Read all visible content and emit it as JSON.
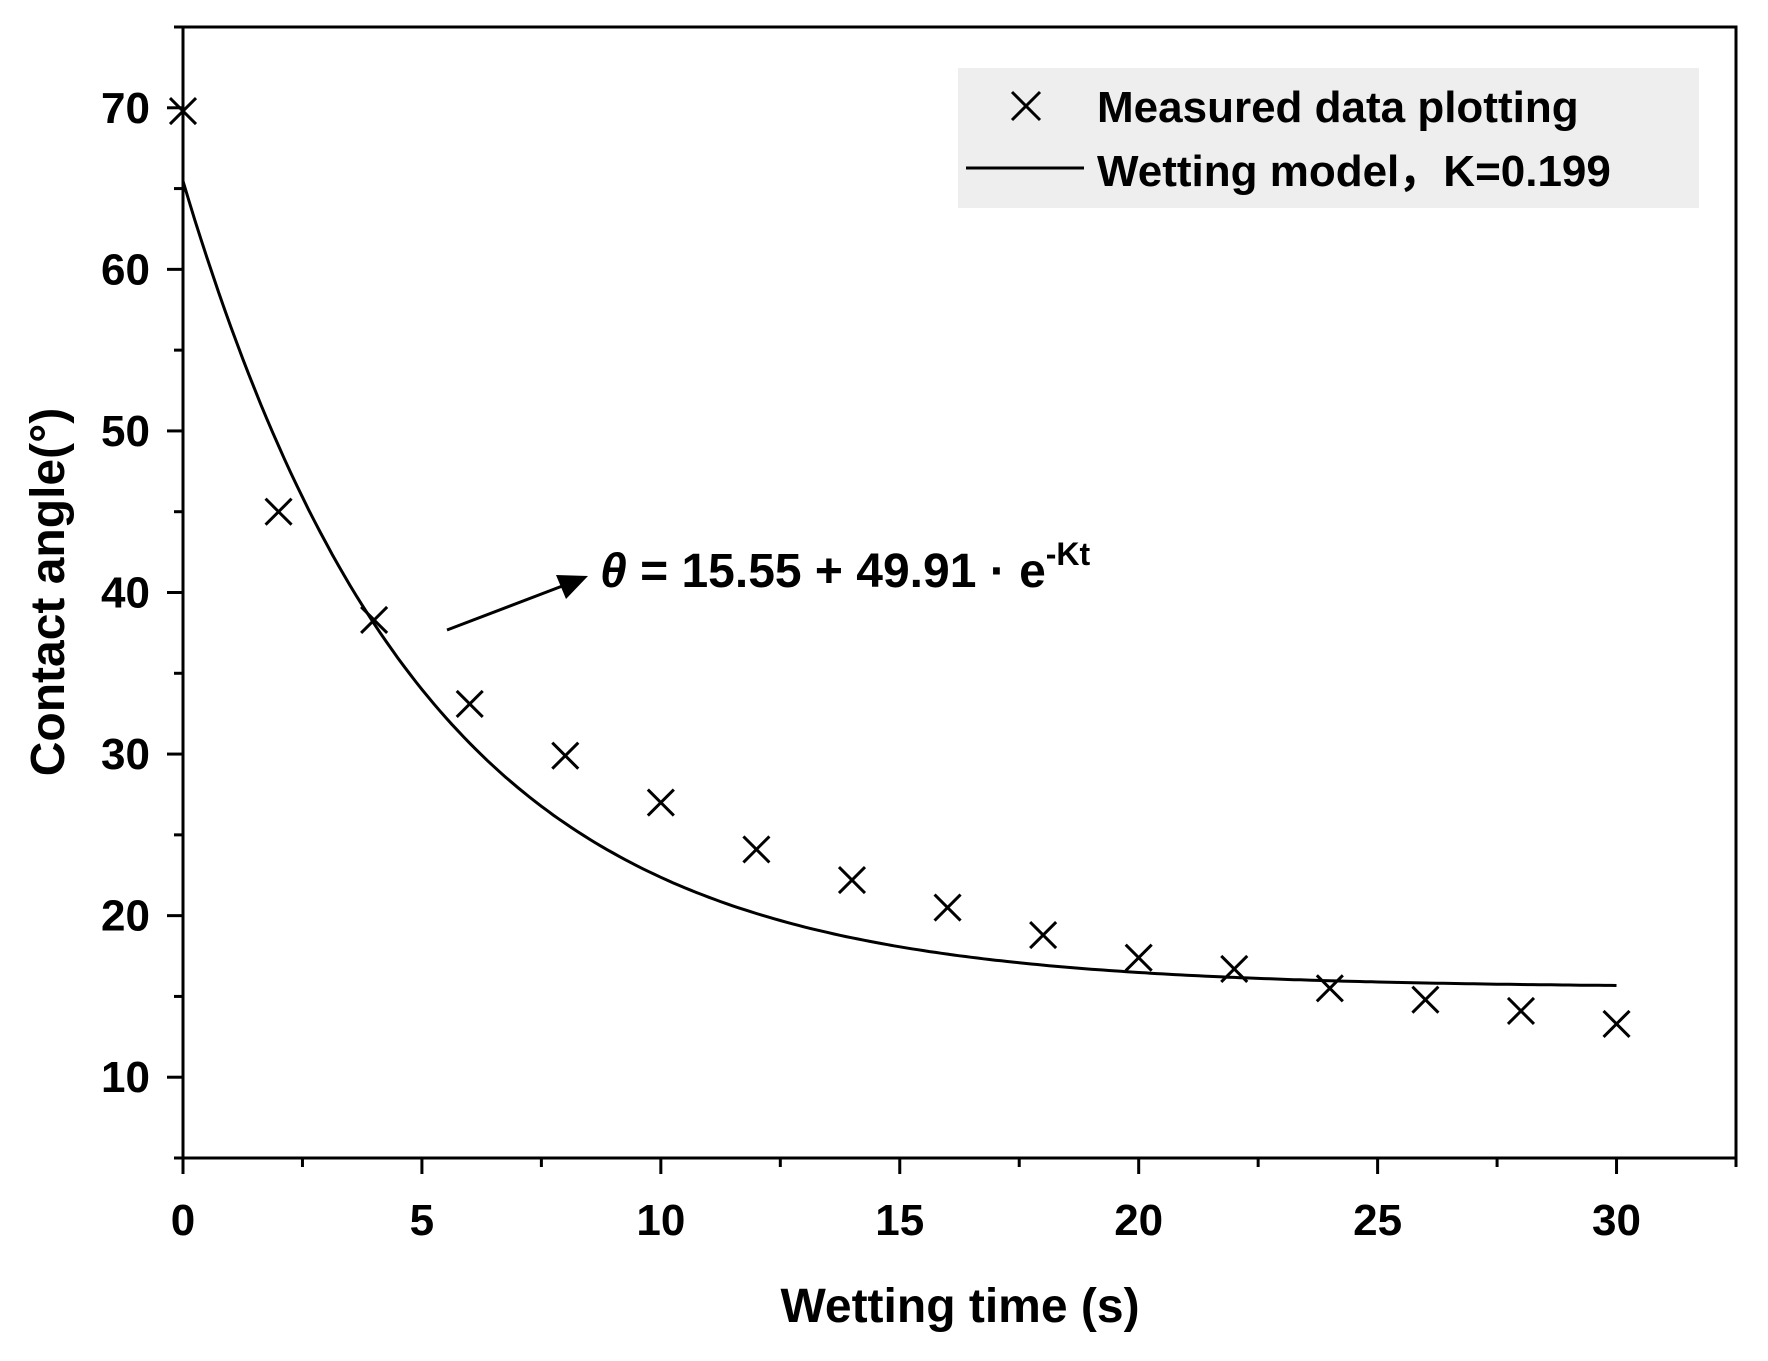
{
  "chart_data": {
    "type": "scatter",
    "title": "",
    "xlabel": "Wetting time (s)",
    "ylabel": "Contact angle(°)",
    "xlim": [
      0,
      32.5
    ],
    "ylim": [
      5,
      75
    ],
    "xticks": [
      0,
      5,
      10,
      15,
      20,
      25,
      30
    ],
    "yticks": [
      10,
      20,
      30,
      40,
      50,
      60,
      70
    ],
    "legend_position": "top-right",
    "series": [
      {
        "name": "Measured data plotting",
        "kind": "scatter",
        "marker": "x",
        "x": [
          0,
          2,
          4,
          6,
          8,
          10,
          12,
          14,
          16,
          18,
          20,
          22,
          24,
          26,
          28,
          30
        ],
        "y": [
          69.8,
          45.0,
          38.3,
          33.1,
          29.9,
          27.0,
          24.1,
          22.2,
          20.5,
          18.8,
          17.4,
          16.7,
          15.5,
          14.8,
          14.1,
          13.3
        ]
      },
      {
        "name": "Wetting model",
        "legend_suffix": "，K=0.199",
        "kind": "line",
        "model": {
          "a": 15.55,
          "b": 49.91,
          "k": 0.199
        },
        "x_range": [
          0,
          30
        ]
      }
    ],
    "annotation": {
      "prefix": "θ",
      "body": " = 15.55 + 49.91 · e",
      "superscript": "-Kt"
    }
  }
}
